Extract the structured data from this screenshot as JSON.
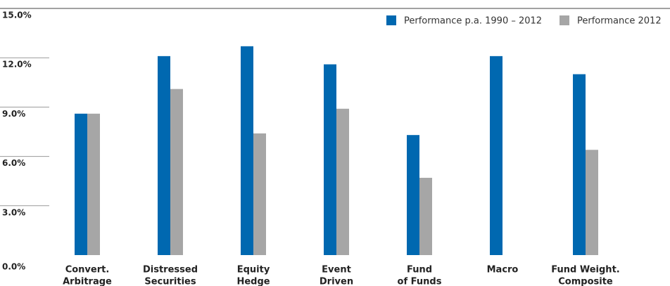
{
  "chart_data": {
    "type": "bar",
    "categories": [
      [
        "Convert.",
        "Arbitrage"
      ],
      [
        "Distressed",
        "Securities"
      ],
      [
        "Equity",
        "Hedge"
      ],
      [
        "Event",
        "Driven"
      ],
      [
        "Fund",
        "of Funds"
      ],
      [
        "Macro"
      ],
      [
        "Fund Weight.",
        "Composite"
      ]
    ],
    "series": [
      {
        "name": "Performance p.a. 1990 – 2012",
        "color": "#0068b0",
        "values": [
          8.6,
          12.1,
          12.7,
          11.6,
          7.3,
          12.1,
          11.0
        ]
      },
      {
        "name": "Performance 2012",
        "color": "#a6a6a6",
        "values": [
          8.6,
          10.1,
          7.4,
          8.9,
          4.7,
          null,
          6.4
        ]
      }
    ],
    "ylim": [
      0,
      15
    ],
    "yticks": [
      {
        "value": 0,
        "label": "0.0%"
      },
      {
        "value": 3,
        "label": "3.0%"
      },
      {
        "value": 6,
        "label": "6.0%"
      },
      {
        "value": 9,
        "label": "9.0%"
      },
      {
        "value": 12,
        "label": "12.0%"
      },
      {
        "value": 15,
        "label": "15.0%"
      }
    ],
    "legend": "top-right"
  }
}
